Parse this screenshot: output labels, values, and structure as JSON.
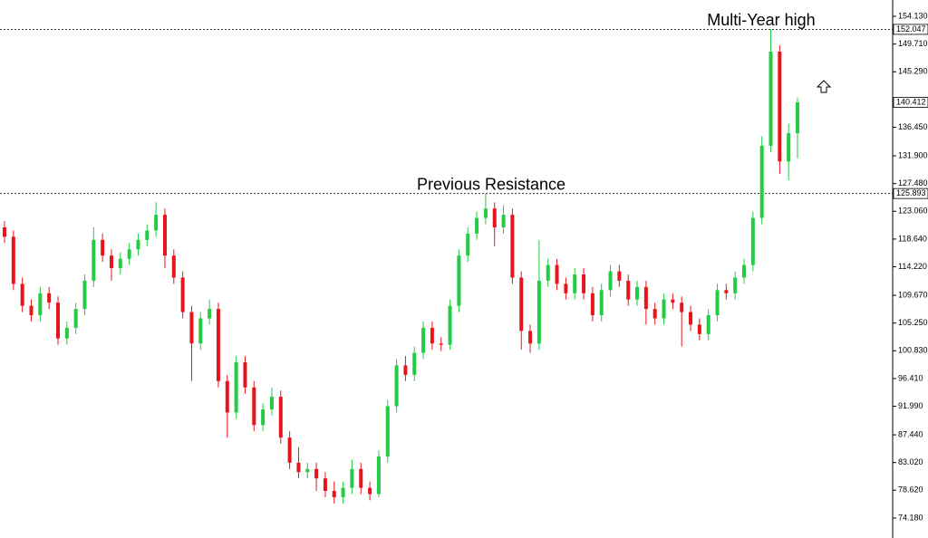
{
  "chart_data": {
    "type": "candlestick",
    "open": [
      120.5,
      119.0,
      111.5,
      108.0,
      106.5,
      110.0,
      108.5,
      102.8,
      104.5,
      107.5,
      112.0,
      118.5,
      116.0,
      114.0,
      115.5,
      117.0,
      118.5,
      120.0,
      122.5,
      116.0,
      112.5,
      107.0,
      102.0,
      106.0,
      107.5,
      96.0,
      91.0,
      99.0,
      95.0,
      89.0,
      91.5,
      93.5,
      87.0,
      83.0,
      81.5,
      82.0,
      80.5,
      78.5,
      77.5,
      79.0,
      82.0,
      79.0,
      78.0,
      84.0,
      92.0,
      98.5,
      97.0,
      100.5,
      104.5,
      102.0,
      101.8,
      108.0,
      116.0,
      119.5,
      122.0,
      123.5,
      120.5,
      122.5,
      112.5,
      104.0,
      102.0,
      112.0,
      114.5,
      111.5,
      110.0,
      113.0,
      110.0,
      106.5,
      110.5,
      113.5,
      112.0,
      109.0,
      111.0,
      107.5,
      106.0,
      109.0,
      108.5,
      107.0,
      105.0,
      103.5,
      106.5,
      110.5,
      110.0,
      112.5,
      114.5,
      122.0,
      133.5,
      148.5,
      131.0,
      135.5
    ],
    "high": [
      121.5,
      120,
      112.5,
      109,
      111,
      111,
      109.5,
      105.5,
      108.5,
      113,
      120.5,
      119.5,
      117,
      116.5,
      118,
      119.5,
      121,
      124.5,
      123.5,
      117,
      113.5,
      108,
      107,
      109,
      108.5,
      97,
      100,
      100,
      96,
      92.5,
      95,
      94.5,
      88,
      85.5,
      83,
      83,
      81.5,
      80,
      80,
      83.5,
      83,
      80,
      85,
      93,
      99.5,
      100,
      101.5,
      105.5,
      105.5,
      103,
      109,
      117,
      120.5,
      123,
      125.9,
      124.5,
      124,
      123.5,
      113.5,
      105,
      118.5,
      115.5,
      115.5,
      112.5,
      114,
      114,
      111,
      111.5,
      114.5,
      114.5,
      113,
      112,
      112,
      108.5,
      110,
      110,
      109.5,
      108,
      106,
      107.5,
      111.5,
      111.5,
      113.5,
      115.5,
      123,
      135,
      152.047,
      149.5,
      137,
      141.2
    ],
    "low": [
      118,
      110.5,
      107,
      105.5,
      105.5,
      107.5,
      101.8,
      101.8,
      103.5,
      106.5,
      111,
      115,
      112,
      113,
      114.5,
      116,
      117.5,
      119,
      114,
      111.5,
      106,
      96,
      101,
      105,
      95,
      87,
      90,
      94,
      88,
      88,
      90.5,
      86,
      82,
      80.5,
      80.5,
      78.5,
      77.5,
      76.5,
      76.5,
      78,
      78,
      77,
      77.5,
      83,
      91,
      96,
      96,
      99.5,
      101,
      100.8,
      101,
      107,
      115,
      118.5,
      121,
      117.5,
      119.5,
      111.5,
      101,
      100.5,
      101,
      111,
      110.5,
      109,
      109,
      109,
      105.5,
      105.5,
      109.5,
      111,
      108,
      108,
      105,
      105,
      105,
      107.5,
      101.5,
      104,
      102.5,
      102.5,
      105.5,
      109,
      109,
      111.5,
      113.5,
      121,
      132.5,
      129,
      128,
      131.5
    ],
    "close": [
      119.0,
      111.5,
      108.0,
      106.5,
      110.0,
      108.5,
      102.8,
      104.5,
      107.5,
      112.0,
      118.5,
      116.0,
      114.0,
      115.5,
      117.0,
      118.5,
      120.0,
      122.5,
      116.0,
      112.5,
      107.0,
      102.0,
      106.0,
      107.5,
      96.0,
      91.0,
      99.0,
      95.0,
      89.0,
      91.5,
      93.5,
      87.0,
      83.0,
      81.5,
      82.0,
      80.5,
      78.5,
      77.5,
      79.0,
      82.0,
      79.0,
      78.0,
      84.0,
      92.0,
      98.5,
      97.0,
      100.5,
      104.5,
      102.0,
      101.8,
      108.0,
      116.0,
      119.5,
      122.0,
      123.5,
      120.5,
      122.5,
      112.5,
      104.0,
      102.0,
      112.0,
      114.5,
      111.5,
      110.0,
      113.0,
      110.0,
      106.5,
      110.5,
      113.5,
      112.0,
      109.0,
      111.0,
      107.5,
      106.0,
      109.0,
      108.5,
      107.0,
      105.0,
      103.5,
      106.5,
      110.5,
      110.0,
      112.5,
      114.5,
      122.0,
      133.5,
      148.5,
      131.0,
      135.5,
      140.412
    ],
    "up_color": "#22cc44",
    "down_color": "#e8141c",
    "ylim": [
      72.3,
      156.73
    ],
    "yticks": [
      {
        "value": 154.13,
        "label": "154.130"
      },
      {
        "value": 149.71,
        "label": "149.710"
      },
      {
        "value": 145.29,
        "label": "145.290"
      },
      {
        "value": 136.45,
        "label": "136.450"
      },
      {
        "value": 131.9,
        "label": "131.900"
      },
      {
        "value": 127.48,
        "label": "127.480"
      },
      {
        "value": 123.06,
        "label": "123.060"
      },
      {
        "value": 118.64,
        "label": "118.640"
      },
      {
        "value": 114.22,
        "label": "114.220"
      },
      {
        "value": 109.67,
        "label": "109.670"
      },
      {
        "value": 105.25,
        "label": "105.250"
      },
      {
        "value": 100.83,
        "label": "100.830"
      },
      {
        "value": 96.41,
        "label": "96.410"
      },
      {
        "value": 91.99,
        "label": "91.990"
      },
      {
        "value": 87.44,
        "label": "87.440"
      },
      {
        "value": 83.02,
        "label": "83.020"
      },
      {
        "value": 78.62,
        "label": "78.620"
      },
      {
        "value": 74.18,
        "label": "74.180"
      }
    ],
    "levels": [
      152.047,
      125.893
    ],
    "annotations": [
      "Multi-Year high",
      "Previous Resistance"
    ]
  }
}
